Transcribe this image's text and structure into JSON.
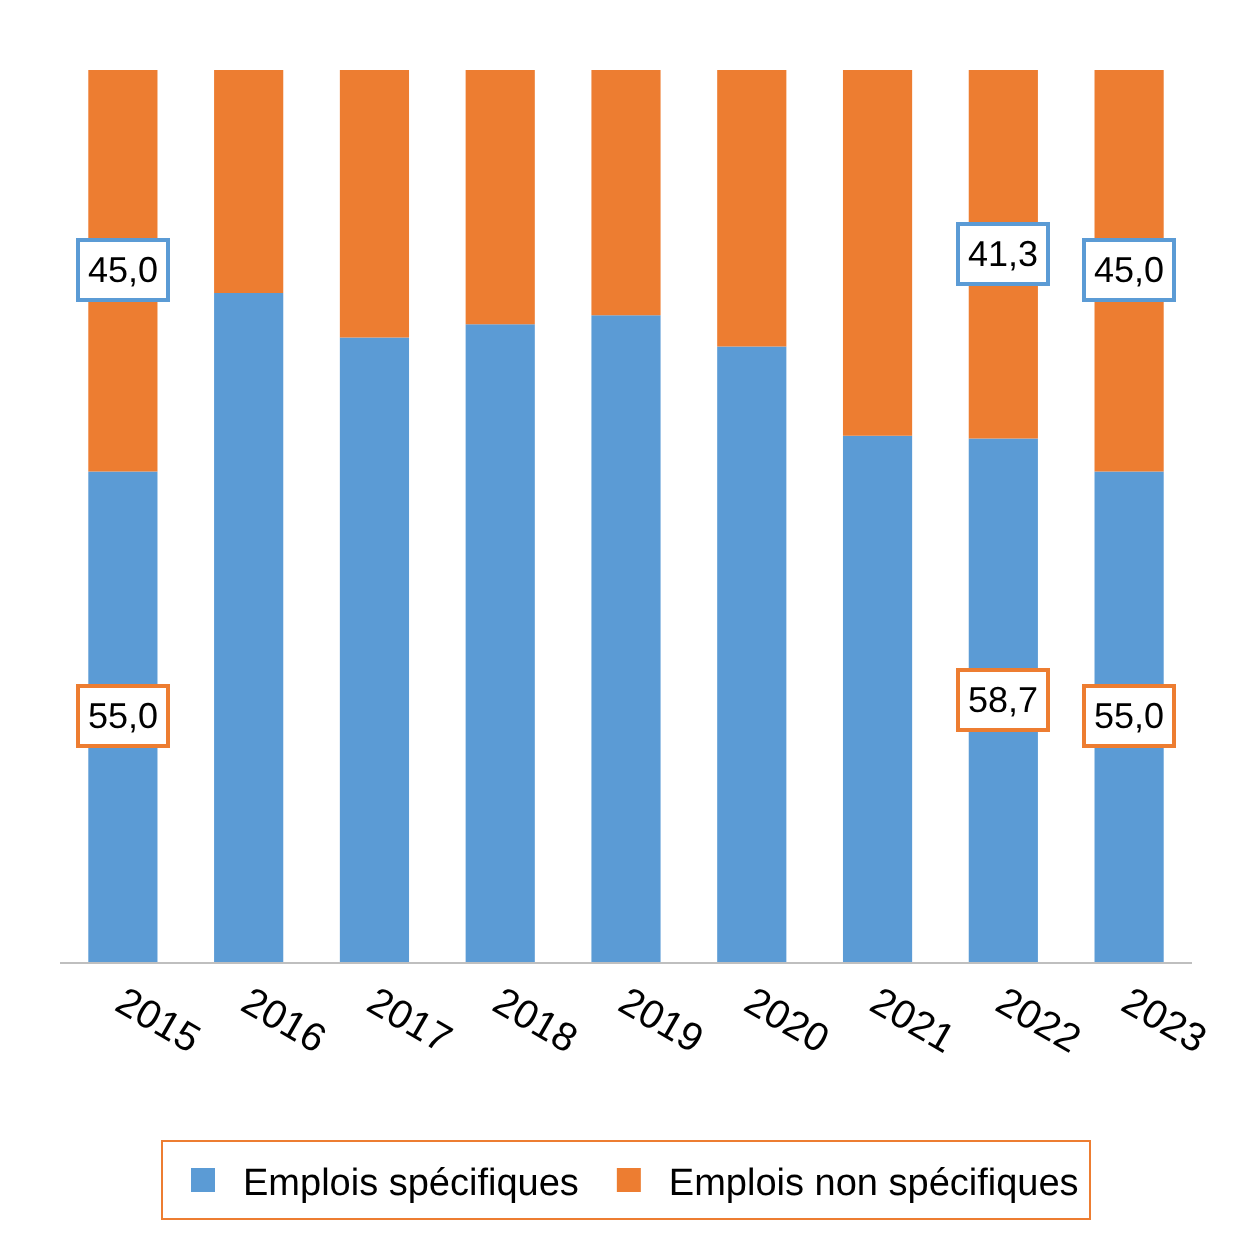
{
  "chart_data": {
    "type": "bar",
    "stacked": true,
    "categories": [
      "2015",
      "2016",
      "2017",
      "2018",
      "2019",
      "2020",
      "2021",
      "2022",
      "2023"
    ],
    "series": [
      {
        "name": "Emplois spécifiques",
        "color": "#5b9bd5",
        "values": [
          55.0,
          75,
          70,
          71.5,
          72.5,
          69,
          59,
          58.7,
          55.0
        ],
        "value_labels": [
          "55,0",
          null,
          null,
          null,
          null,
          null,
          null,
          "58,7",
          "55,0"
        ]
      },
      {
        "name": "Emplois non spécifiques",
        "color": "#ed7d31",
        "values": [
          45.0,
          25,
          30,
          28.5,
          27.5,
          31,
          41,
          41.3,
          45.0
        ],
        "value_labels": [
          "45,0",
          null,
          null,
          null,
          null,
          null,
          null,
          "41,3",
          "45,0"
        ]
      }
    ],
    "ylim": [
      0,
      100
    ],
    "legend": "bottom"
  }
}
